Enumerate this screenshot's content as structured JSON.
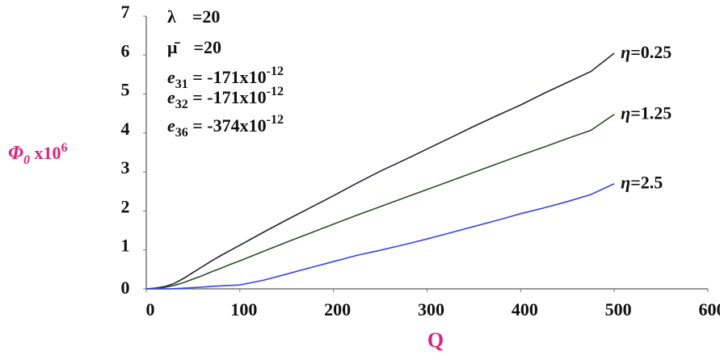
{
  "chart_data": {
    "type": "line",
    "xlabel": "Q",
    "ylabel": {
      "symbol": "Φ",
      "subscript": "0",
      "suffix": " x10",
      "sup": "6"
    },
    "xlim": [
      0,
      600
    ],
    "ylim": [
      0,
      7
    ],
    "x_ticks": [
      "0",
      "100",
      "200",
      "300",
      "400",
      "500",
      "600"
    ],
    "y_ticks": [
      "0",
      "1",
      "2",
      "3",
      "4",
      "5",
      "6",
      "7"
    ],
    "grid": false,
    "parameters": [
      {
        "sym": "λ",
        "sub": "",
        "eq": "=20",
        "sup": ""
      },
      {
        "sym": "μ̄",
        "sub": "",
        "eq": "=20",
        "sup": ""
      },
      {
        "sym": "e",
        "sub": "31",
        "eq": " = -171x10",
        "sup": "-12"
      },
      {
        "sym": "e",
        "sub": "32",
        "eq": " = -171x10",
        "sup": "-12"
      },
      {
        "sym": "e",
        "sub": "36",
        "eq": " = -374x10",
        "sup": "-12"
      }
    ],
    "series": [
      {
        "name": "η=0.25",
        "label_sym": "η",
        "label_val": "=0.25",
        "color": "#22223a",
        "points": [
          [
            0,
            0
          ],
          [
            10,
            0.02
          ],
          [
            20,
            0.06
          ],
          [
            30,
            0.14
          ],
          [
            40,
            0.27
          ],
          [
            50,
            0.42
          ],
          [
            60,
            0.57
          ],
          [
            70,
            0.72
          ],
          [
            80,
            0.86
          ],
          [
            90,
            0.99
          ],
          [
            100,
            1.12
          ],
          [
            125,
            1.45
          ],
          [
            150,
            1.77
          ],
          [
            175,
            2.08
          ],
          [
            200,
            2.39
          ],
          [
            225,
            2.71
          ],
          [
            250,
            3.02
          ],
          [
            275,
            3.3
          ],
          [
            300,
            3.59
          ],
          [
            325,
            3.88
          ],
          [
            350,
            4.17
          ],
          [
            375,
            4.45
          ],
          [
            400,
            4.72
          ],
          [
            425,
            5.02
          ],
          [
            450,
            5.3
          ],
          [
            475,
            5.58
          ],
          [
            500,
            6.05
          ]
        ]
      },
      {
        "name": "η=1.25",
        "label_sym": "η",
        "label_val": "=1.25",
        "color": "#2b4f25",
        "points": [
          [
            0,
            0
          ],
          [
            10,
            0.01
          ],
          [
            20,
            0.04
          ],
          [
            30,
            0.09
          ],
          [
            40,
            0.16
          ],
          [
            50,
            0.25
          ],
          [
            60,
            0.34
          ],
          [
            70,
            0.44
          ],
          [
            80,
            0.53
          ],
          [
            90,
            0.63
          ],
          [
            100,
            0.72
          ],
          [
            125,
            0.96
          ],
          [
            150,
            1.2
          ],
          [
            175,
            1.43
          ],
          [
            200,
            1.66
          ],
          [
            225,
            1.89
          ],
          [
            250,
            2.11
          ],
          [
            275,
            2.33
          ],
          [
            300,
            2.55
          ],
          [
            325,
            2.77
          ],
          [
            350,
            2.99
          ],
          [
            375,
            3.21
          ],
          [
            400,
            3.43
          ],
          [
            425,
            3.64
          ],
          [
            450,
            3.86
          ],
          [
            475,
            4.07
          ],
          [
            500,
            4.48
          ]
        ]
      },
      {
        "name": "η=2.5",
        "label_sym": "η",
        "label_val": "=2.5",
        "color": "#3344ee",
        "points": [
          [
            0,
            0
          ],
          [
            25,
            0.0
          ],
          [
            50,
            0.03
          ],
          [
            75,
            0.07
          ],
          [
            100,
            0.1
          ],
          [
            125,
            0.22
          ],
          [
            150,
            0.38
          ],
          [
            175,
            0.54
          ],
          [
            200,
            0.7
          ],
          [
            225,
            0.86
          ],
          [
            250,
            0.99
          ],
          [
            275,
            1.13
          ],
          [
            300,
            1.28
          ],
          [
            325,
            1.44
          ],
          [
            350,
            1.6
          ],
          [
            375,
            1.76
          ],
          [
            400,
            1.93
          ],
          [
            425,
            2.08
          ],
          [
            450,
            2.24
          ],
          [
            475,
            2.42
          ],
          [
            500,
            2.7
          ]
        ]
      }
    ]
  }
}
